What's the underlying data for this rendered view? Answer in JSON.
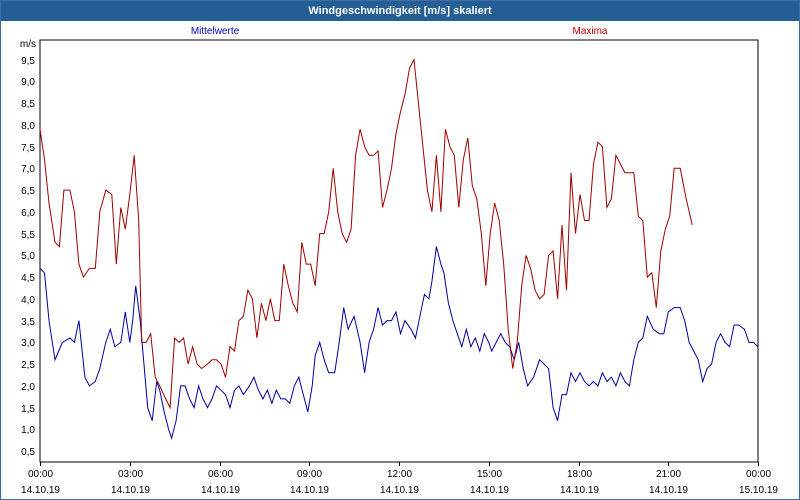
{
  "window": {
    "title": "Windgeschwindigkeit [m/s] skaliert"
  },
  "legend": {
    "left": "Mittelwerte",
    "right": "Maxima"
  },
  "chart_data": {
    "type": "line",
    "title": "Windgeschwindigkeit [m/s] skaliert",
    "ylabel": "m/s",
    "xlabel": "",
    "ylim": [
      0.25,
      9.95
    ],
    "y_ticks": [
      "0,5",
      "1,0",
      "1,5",
      "2,0",
      "2,5",
      "3,0",
      "3,5",
      "4,0",
      "4,5",
      "5,0",
      "5,5",
      "6,0",
      "6,5",
      "7,0",
      "7,5",
      "8,0",
      "8,5",
      "9,0",
      "9,5"
    ],
    "x_ticks": [
      {
        "time": "00:00",
        "date": "14.10.19"
      },
      {
        "time": "03:00",
        "date": "14.10.19"
      },
      {
        "time": "06:00",
        "date": "14.10.19"
      },
      {
        "time": "09:00",
        "date": "14.10.19"
      },
      {
        "time": "12:00",
        "date": "14.10.19"
      },
      {
        "time": "15:00",
        "date": "14.10.19"
      },
      {
        "time": "18:00",
        "date": "14.10.19"
      },
      {
        "time": "21:00",
        "date": "14.10.19"
      },
      {
        "time": "00:00",
        "date": "15.10.19"
      }
    ],
    "x_range_hours": [
      0,
      24
    ],
    "grid": true,
    "legend_placement": "top",
    "series": [
      {
        "name": "Mittelwerte",
        "color": "#0000a0",
        "points": [
          [
            0.0,
            4.7
          ],
          [
            0.15,
            4.6
          ],
          [
            0.3,
            3.5
          ],
          [
            0.5,
            2.6
          ],
          [
            0.75,
            3.0
          ],
          [
            1.0,
            3.1
          ],
          [
            1.15,
            3.0
          ],
          [
            1.3,
            3.5
          ],
          [
            1.5,
            2.2
          ],
          [
            1.65,
            2.0
          ],
          [
            1.85,
            2.1
          ],
          [
            2.0,
            2.4
          ],
          [
            2.2,
            3.0
          ],
          [
            2.35,
            3.3
          ],
          [
            2.5,
            2.9
          ],
          [
            2.7,
            3.0
          ],
          [
            2.85,
            3.7
          ],
          [
            3.0,
            3.0
          ],
          [
            3.1,
            3.5
          ],
          [
            3.2,
            4.3
          ],
          [
            3.35,
            3.5
          ],
          [
            3.5,
            2.3
          ],
          [
            3.6,
            1.5
          ],
          [
            3.75,
            1.2
          ],
          [
            3.9,
            2.1
          ],
          [
            4.0,
            1.9
          ],
          [
            4.15,
            1.4
          ],
          [
            4.3,
            1.0
          ],
          [
            4.4,
            0.8
          ],
          [
            4.55,
            1.2
          ],
          [
            4.7,
            2.0
          ],
          [
            4.85,
            2.0
          ],
          [
            5.0,
            1.7
          ],
          [
            5.15,
            1.5
          ],
          [
            5.3,
            2.0
          ],
          [
            5.45,
            1.7
          ],
          [
            5.6,
            1.5
          ],
          [
            5.75,
            1.7
          ],
          [
            5.9,
            2.0
          ],
          [
            6.05,
            1.9
          ],
          [
            6.2,
            1.8
          ],
          [
            6.35,
            1.5
          ],
          [
            6.5,
            1.9
          ],
          [
            6.65,
            2.0
          ],
          [
            6.8,
            1.8
          ],
          [
            7.0,
            2.0
          ],
          [
            7.15,
            2.2
          ],
          [
            7.3,
            1.9
          ],
          [
            7.45,
            1.7
          ],
          [
            7.6,
            1.9
          ],
          [
            7.75,
            1.6
          ],
          [
            7.9,
            1.9
          ],
          [
            8.05,
            1.7
          ],
          [
            8.2,
            1.7
          ],
          [
            8.35,
            1.6
          ],
          [
            8.5,
            2.0
          ],
          [
            8.65,
            2.2
          ],
          [
            8.8,
            1.8
          ],
          [
            8.95,
            1.4
          ],
          [
            9.1,
            2.0
          ],
          [
            9.2,
            2.7
          ],
          [
            9.35,
            3.0
          ],
          [
            9.5,
            2.6
          ],
          [
            9.65,
            2.3
          ],
          [
            9.85,
            2.3
          ],
          [
            10.0,
            3.0
          ],
          [
            10.15,
            3.8
          ],
          [
            10.3,
            3.3
          ],
          [
            10.5,
            3.6
          ],
          [
            10.7,
            3.0
          ],
          [
            10.85,
            2.3
          ],
          [
            11.0,
            3.0
          ],
          [
            11.15,
            3.3
          ],
          [
            11.3,
            3.8
          ],
          [
            11.45,
            3.4
          ],
          [
            11.6,
            3.5
          ],
          [
            11.75,
            3.5
          ],
          [
            11.9,
            3.7
          ],
          [
            12.05,
            3.2
          ],
          [
            12.2,
            3.5
          ],
          [
            12.4,
            3.3
          ],
          [
            12.55,
            3.1
          ],
          [
            12.7,
            3.6
          ],
          [
            12.85,
            4.1
          ],
          [
            13.0,
            4.0
          ],
          [
            13.1,
            4.4
          ],
          [
            13.25,
            5.2
          ],
          [
            13.4,
            4.8
          ],
          [
            13.5,
            4.6
          ],
          [
            13.65,
            3.9
          ],
          [
            13.8,
            3.5
          ],
          [
            13.95,
            3.2
          ],
          [
            14.1,
            2.9
          ],
          [
            14.25,
            3.3
          ],
          [
            14.4,
            2.9
          ],
          [
            14.55,
            3.1
          ],
          [
            14.7,
            2.8
          ],
          [
            14.85,
            3.2
          ],
          [
            15.0,
            3.0
          ],
          [
            15.1,
            2.8
          ],
          [
            15.25,
            3.0
          ],
          [
            15.4,
            3.2
          ],
          [
            15.55,
            3.0
          ],
          [
            15.7,
            2.9
          ],
          [
            15.85,
            2.6
          ],
          [
            16.0,
            3.0
          ],
          [
            16.15,
            2.4
          ],
          [
            16.3,
            2.0
          ],
          [
            16.5,
            2.2
          ],
          [
            16.7,
            2.6
          ],
          [
            16.85,
            2.5
          ],
          [
            17.0,
            2.4
          ],
          [
            17.15,
            1.5
          ],
          [
            17.3,
            1.2
          ],
          [
            17.45,
            1.8
          ],
          [
            17.6,
            1.8
          ],
          [
            17.75,
            2.3
          ],
          [
            17.9,
            2.1
          ],
          [
            18.05,
            2.3
          ],
          [
            18.2,
            2.1
          ],
          [
            18.35,
            2.0
          ],
          [
            18.5,
            2.1
          ],
          [
            18.65,
            2.0
          ],
          [
            18.8,
            2.3
          ],
          [
            18.95,
            2.1
          ],
          [
            19.1,
            2.2
          ],
          [
            19.25,
            2.0
          ],
          [
            19.4,
            2.3
          ],
          [
            19.55,
            2.1
          ],
          [
            19.7,
            2.0
          ],
          [
            19.85,
            2.6
          ],
          [
            20.0,
            3.0
          ],
          [
            20.15,
            3.1
          ],
          [
            20.3,
            3.6
          ],
          [
            20.5,
            3.3
          ],
          [
            20.7,
            3.2
          ],
          [
            20.85,
            3.2
          ],
          [
            21.0,
            3.7
          ],
          [
            21.2,
            3.8
          ],
          [
            21.4,
            3.8
          ],
          [
            21.55,
            3.5
          ],
          [
            21.7,
            3.0
          ],
          [
            21.85,
            2.8
          ],
          [
            22.0,
            2.6
          ],
          [
            22.15,
            2.1
          ],
          [
            22.3,
            2.4
          ],
          [
            22.45,
            2.5
          ],
          [
            22.6,
            3.0
          ],
          [
            22.75,
            3.2
          ],
          [
            22.9,
            3.0
          ],
          [
            23.05,
            2.9
          ],
          [
            23.2,
            3.4
          ],
          [
            23.35,
            3.4
          ],
          [
            23.55,
            3.3
          ],
          [
            23.7,
            3.0
          ],
          [
            23.85,
            3.0
          ],
          [
            24.0,
            2.9
          ]
        ]
      },
      {
        "name": "Maxima",
        "color": "#a00000",
        "points": [
          [
            0.0,
            7.9
          ],
          [
            0.15,
            7.2
          ],
          [
            0.3,
            6.2
          ],
          [
            0.5,
            5.3
          ],
          [
            0.65,
            5.2
          ],
          [
            0.8,
            6.5
          ],
          [
            1.0,
            6.5
          ],
          [
            1.15,
            6.0
          ],
          [
            1.3,
            4.8
          ],
          [
            1.45,
            4.5
          ],
          [
            1.65,
            4.7
          ],
          [
            1.85,
            4.7
          ],
          [
            2.0,
            6.0
          ],
          [
            2.2,
            6.5
          ],
          [
            2.4,
            6.4
          ],
          [
            2.55,
            4.8
          ],
          [
            2.7,
            6.1
          ],
          [
            2.85,
            5.6
          ],
          [
            3.0,
            6.4
          ],
          [
            3.15,
            7.3
          ],
          [
            3.3,
            5.8
          ],
          [
            3.4,
            3.0
          ],
          [
            3.55,
            3.0
          ],
          [
            3.7,
            3.2
          ],
          [
            3.85,
            2.2
          ],
          [
            4.0,
            2.0
          ],
          [
            4.2,
            1.7
          ],
          [
            4.35,
            1.5
          ],
          [
            4.5,
            3.1
          ],
          [
            4.65,
            3.0
          ],
          [
            4.8,
            3.1
          ],
          [
            4.95,
            2.5
          ],
          [
            5.1,
            2.9
          ],
          [
            5.25,
            2.5
          ],
          [
            5.4,
            2.4
          ],
          [
            5.6,
            2.5
          ],
          [
            5.75,
            2.6
          ],
          [
            5.9,
            2.6
          ],
          [
            6.05,
            2.5
          ],
          [
            6.2,
            2.2
          ],
          [
            6.35,
            2.9
          ],
          [
            6.5,
            2.8
          ],
          [
            6.65,
            3.5
          ],
          [
            6.8,
            3.6
          ],
          [
            6.95,
            4.2
          ],
          [
            7.1,
            4.0
          ],
          [
            7.25,
            3.1
          ],
          [
            7.4,
            3.9
          ],
          [
            7.55,
            3.5
          ],
          [
            7.7,
            4.0
          ],
          [
            7.85,
            3.5
          ],
          [
            8.0,
            3.5
          ],
          [
            8.15,
            4.8
          ],
          [
            8.3,
            4.3
          ],
          [
            8.45,
            3.9
          ],
          [
            8.6,
            3.7
          ],
          [
            8.75,
            5.3
          ],
          [
            8.9,
            4.8
          ],
          [
            9.05,
            4.8
          ],
          [
            9.2,
            4.3
          ],
          [
            9.35,
            5.5
          ],
          [
            9.5,
            5.5
          ],
          [
            9.65,
            6.0
          ],
          [
            9.8,
            7.0
          ],
          [
            9.95,
            6.0
          ],
          [
            10.1,
            5.5
          ],
          [
            10.25,
            5.3
          ],
          [
            10.4,
            5.6
          ],
          [
            10.55,
            7.3
          ],
          [
            10.7,
            7.9
          ],
          [
            10.85,
            7.5
          ],
          [
            11.0,
            7.3
          ],
          [
            11.15,
            7.3
          ],
          [
            11.3,
            7.4
          ],
          [
            11.45,
            6.1
          ],
          [
            11.6,
            6.5
          ],
          [
            11.75,
            7.0
          ],
          [
            11.9,
            7.8
          ],
          [
            12.05,
            8.3
          ],
          [
            12.2,
            8.7
          ],
          [
            12.35,
            9.3
          ],
          [
            12.5,
            9.5
          ],
          [
            12.65,
            8.5
          ],
          [
            12.8,
            7.5
          ],
          [
            12.95,
            6.5
          ],
          [
            13.1,
            6.0
          ],
          [
            13.25,
            7.3
          ],
          [
            13.4,
            6.0
          ],
          [
            13.55,
            7.9
          ],
          [
            13.7,
            7.5
          ],
          [
            13.85,
            7.3
          ],
          [
            14.0,
            6.1
          ],
          [
            14.15,
            7.2
          ],
          [
            14.3,
            7.7
          ],
          [
            14.45,
            6.6
          ],
          [
            14.6,
            6.3
          ],
          [
            14.75,
            5.5
          ],
          [
            14.9,
            4.3
          ],
          [
            15.05,
            5.5
          ],
          [
            15.2,
            6.2
          ],
          [
            15.35,
            5.8
          ],
          [
            15.5,
            4.8
          ],
          [
            15.65,
            3.3
          ],
          [
            15.8,
            2.4
          ],
          [
            15.95,
            3.0
          ],
          [
            16.1,
            4.3
          ],
          [
            16.25,
            5.0
          ],
          [
            16.4,
            4.7
          ],
          [
            16.55,
            4.2
          ],
          [
            16.7,
            4.0
          ],
          [
            16.85,
            4.1
          ],
          [
            17.0,
            5.0
          ],
          [
            17.15,
            5.1
          ],
          [
            17.3,
            4.0
          ],
          [
            17.45,
            5.7
          ],
          [
            17.6,
            4.2
          ],
          [
            17.75,
            6.9
          ],
          [
            17.9,
            5.5
          ],
          [
            18.05,
            6.4
          ],
          [
            18.2,
            5.8
          ],
          [
            18.35,
            5.8
          ],
          [
            18.5,
            7.1
          ],
          [
            18.65,
            7.6
          ],
          [
            18.8,
            7.5
          ],
          [
            18.95,
            6.1
          ],
          [
            19.1,
            6.3
          ],
          [
            19.25,
            7.3
          ],
          [
            19.4,
            7.1
          ],
          [
            19.55,
            6.9
          ],
          [
            19.7,
            6.9
          ],
          [
            19.85,
            6.9
          ],
          [
            20.0,
            5.9
          ],
          [
            20.15,
            5.8
          ],
          [
            20.3,
            4.5
          ],
          [
            20.45,
            4.6
          ],
          [
            20.6,
            3.8
          ],
          [
            20.75,
            5.1
          ],
          [
            20.9,
            5.6
          ],
          [
            21.05,
            5.9
          ],
          [
            21.2,
            7.0
          ],
          [
            21.4,
            7.0
          ],
          [
            21.6,
            6.3
          ],
          [
            21.8,
            5.7
          ]
        ]
      }
    ]
  }
}
